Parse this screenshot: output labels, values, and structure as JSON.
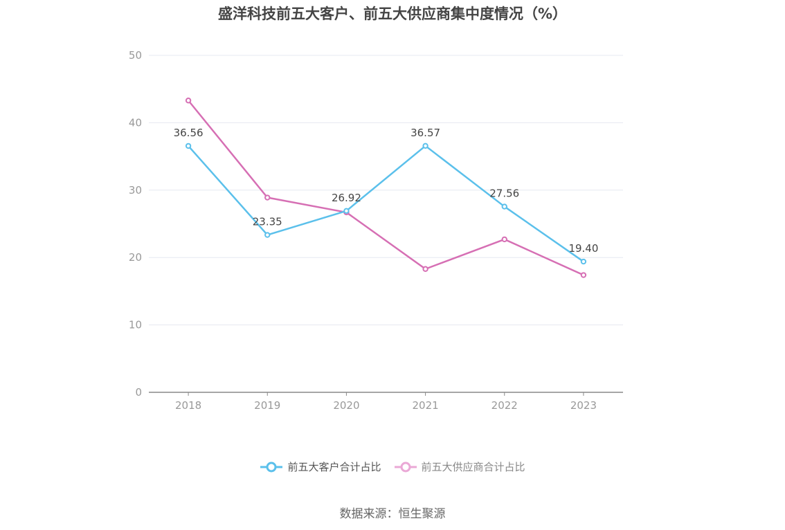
{
  "chart_data": {
    "type": "line",
    "title": "盛洋科技前五大客户、前五大供应商集中度情况（%）",
    "categories": [
      "2018",
      "2019",
      "2020",
      "2021",
      "2022",
      "2023"
    ],
    "ylim": [
      0,
      50
    ],
    "yticks": [
      0,
      10,
      20,
      30,
      40,
      50
    ],
    "grid": true,
    "legend_position": "bottom",
    "series": [
      {
        "name": "前五大客户合计占比",
        "color": "#5bc0eb",
        "values": [
          36.56,
          23.35,
          26.92,
          36.57,
          27.56,
          19.4
        ],
        "labels": [
          "36.56",
          "23.35",
          "26.92",
          "36.57",
          "27.56",
          "19.40"
        ]
      },
      {
        "name": "前五大供应商合计占比",
        "color": "#d66fb4",
        "legend_color": "#eaa8d6",
        "values": [
          43.3,
          28.9,
          26.7,
          18.3,
          22.7,
          17.4
        ]
      }
    ]
  },
  "source": "数据来源：恒生聚源"
}
